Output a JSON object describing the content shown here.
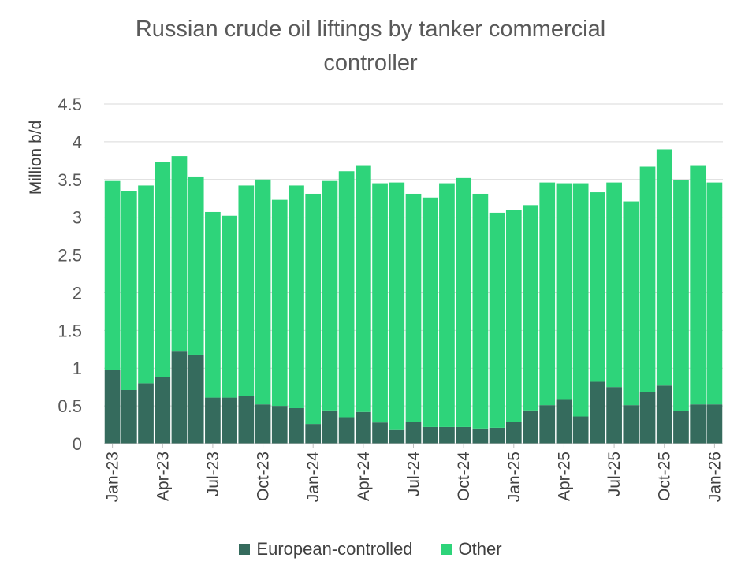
{
  "chart_data": {
    "type": "bar",
    "stacked": true,
    "title_lines": [
      "Russian crude oil liftings by tanker commercial",
      "controller"
    ],
    "ylabel": "Million b/d",
    "ylim": [
      0,
      4.5
    ],
    "yticks": [
      "0",
      "0.5",
      "1",
      "1.5",
      "2",
      "2.5",
      "3",
      "3.5",
      "4",
      "4.5"
    ],
    "ytick_values": [
      0,
      0.5,
      1,
      1.5,
      2,
      2.5,
      3,
      3.5,
      4,
      4.5
    ],
    "grid": true,
    "legend_position": "bottom",
    "categories": [
      "Jan-23",
      "Feb-23",
      "Mar-23",
      "Apr-23",
      "May-23",
      "Jun-23",
      "Jul-23",
      "Aug-23",
      "Sep-23",
      "Oct-23",
      "Nov-23",
      "Dec-23",
      "Jan-24",
      "Feb-24",
      "Mar-24",
      "Apr-24",
      "May-24",
      "Jun-24",
      "Jul-24",
      "Aug-24",
      "Sep-24",
      "Oct-24",
      "Nov-24",
      "Dec-24",
      "Jan-25",
      "Feb-25",
      "Mar-25",
      "Apr-25",
      "May-25",
      "Jun-25",
      "Jul-25",
      "Aug-25",
      "Sep-25",
      "Oct-25",
      "Nov-25",
      "Dec-25",
      "Jan-26"
    ],
    "x_tick_labels": [
      {
        "index": 0,
        "label": "Jan-23"
      },
      {
        "index": 3,
        "label": "Apr-23"
      },
      {
        "index": 6,
        "label": "Jul-23"
      },
      {
        "index": 9,
        "label": "Oct-23"
      },
      {
        "index": 12,
        "label": "Jan-24"
      },
      {
        "index": 15,
        "label": "Apr-24"
      },
      {
        "index": 18,
        "label": "Jul-24"
      },
      {
        "index": 21,
        "label": "Oct-24"
      },
      {
        "index": 24,
        "label": "Jan-25"
      },
      {
        "index": 27,
        "label": "Apr-25"
      },
      {
        "index": 30,
        "label": "Jul-25"
      },
      {
        "index": 33,
        "label": "Oct-25"
      },
      {
        "index": 36,
        "label": "Jan-26"
      }
    ],
    "series": [
      {
        "name": "European-controlled",
        "color": "#356b5d",
        "values": [
          0.98,
          0.71,
          0.8,
          0.88,
          1.22,
          1.18,
          0.61,
          0.61,
          0.63,
          0.52,
          0.5,
          0.47,
          0.26,
          0.44,
          0.35,
          0.42,
          0.28,
          0.18,
          0.29,
          0.22,
          0.22,
          0.22,
          0.2,
          0.21,
          0.29,
          0.44,
          0.51,
          0.59,
          0.36,
          0.82,
          0.75,
          0.51,
          0.68,
          0.77,
          0.43,
          0.52,
          0.52
        ]
      },
      {
        "name": "Other",
        "color": "#2ed47a",
        "values": [
          2.5,
          2.64,
          2.62,
          2.85,
          2.59,
          2.36,
          2.46,
          2.41,
          2.79,
          2.98,
          2.73,
          2.95,
          3.05,
          3.04,
          3.26,
          3.26,
          3.17,
          3.28,
          3.02,
          3.04,
          3.23,
          3.3,
          3.11,
          2.85,
          2.81,
          2.72,
          2.95,
          2.86,
          3.09,
          2.51,
          2.71,
          2.7,
          2.99,
          3.13,
          3.06,
          3.16,
          2.94
        ]
      }
    ]
  }
}
